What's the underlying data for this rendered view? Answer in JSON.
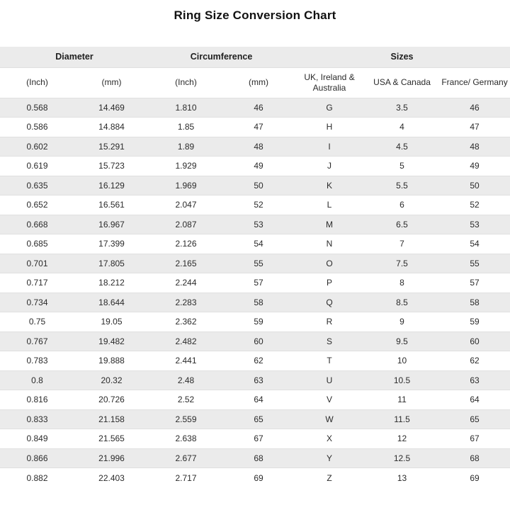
{
  "page_title": "Ring Size Conversion Chart",
  "colors": {
    "header_bg": "#ebebeb",
    "row_alt_bg": "#ebebeb",
    "row_bg": "#ffffff",
    "row_border": "#e0e0e0",
    "text": "#2b2b2b",
    "title_text": "#111111"
  },
  "table": {
    "group_headers": [
      {
        "label": "Diameter",
        "colspan": 2
      },
      {
        "label": "Circumference",
        "colspan": 2
      },
      {
        "label": "Sizes",
        "colspan": 3
      }
    ],
    "column_headers": [
      "(Inch)",
      "(mm)",
      "(Inch)",
      "(mm)",
      "UK, Ireland & Australia",
      "USA & Canada",
      "France/ Germany"
    ]
  },
  "chart_data": {
    "type": "table",
    "title": "Ring Size Conversion Chart",
    "column_groups": [
      "Diameter",
      "Diameter",
      "Circumference",
      "Circumference",
      "Sizes",
      "Sizes",
      "Sizes"
    ],
    "columns": [
      "Diameter (Inch)",
      "Diameter (mm)",
      "Circumference (Inch)",
      "Circumference (mm)",
      "UK, Ireland & Australia",
      "USA & Canada",
      "France/ Germany"
    ],
    "rows": [
      [
        "0.568",
        "14.469",
        "1.810",
        "46",
        "G",
        "3.5",
        "46"
      ],
      [
        "0.586",
        "14.884",
        "1.85",
        "47",
        "H",
        "4",
        "47"
      ],
      [
        "0.602",
        "15.291",
        "1.89",
        "48",
        "I",
        "4.5",
        "48"
      ],
      [
        "0.619",
        "15.723",
        "1.929",
        "49",
        "J",
        "5",
        "49"
      ],
      [
        "0.635",
        "16.129",
        "1.969",
        "50",
        "K",
        "5.5",
        "50"
      ],
      [
        "0.652",
        "16.561",
        "2.047",
        "52",
        "L",
        "6",
        "52"
      ],
      [
        "0.668",
        "16.967",
        "2.087",
        "53",
        "M",
        "6.5",
        "53"
      ],
      [
        "0.685",
        "17.399",
        "2.126",
        "54",
        "N",
        "7",
        "54"
      ],
      [
        "0.701",
        "17.805",
        "2.165",
        "55",
        "O",
        "7.5",
        "55"
      ],
      [
        "0.717",
        "18.212",
        "2.244",
        "57",
        "P",
        "8",
        "57"
      ],
      [
        "0.734",
        "18.644",
        "2.283",
        "58",
        "Q",
        "8.5",
        "58"
      ],
      [
        "0.75",
        "19.05",
        "2.362",
        "59",
        "R",
        "9",
        "59"
      ],
      [
        "0.767",
        "19.482",
        "2.482",
        "60",
        "S",
        "9.5",
        "60"
      ],
      [
        "0.783",
        "19.888",
        "2.441",
        "62",
        "T",
        "10",
        "62"
      ],
      [
        "0.8",
        "20.32",
        "2.48",
        "63",
        "U",
        "10.5",
        "63"
      ],
      [
        "0.816",
        "20.726",
        "2.52",
        "64",
        "V",
        "11",
        "64"
      ],
      [
        "0.833",
        "21.158",
        "2.559",
        "65",
        "W",
        "11.5",
        "65"
      ],
      [
        "0.849",
        "21.565",
        "2.638",
        "67",
        "X",
        "12",
        "67"
      ],
      [
        "0.866",
        "21.996",
        "2.677",
        "68",
        "Y",
        "12.5",
        "68"
      ],
      [
        "0.882",
        "22.403",
        "2.717",
        "69",
        "Z",
        "13",
        "69"
      ]
    ]
  }
}
